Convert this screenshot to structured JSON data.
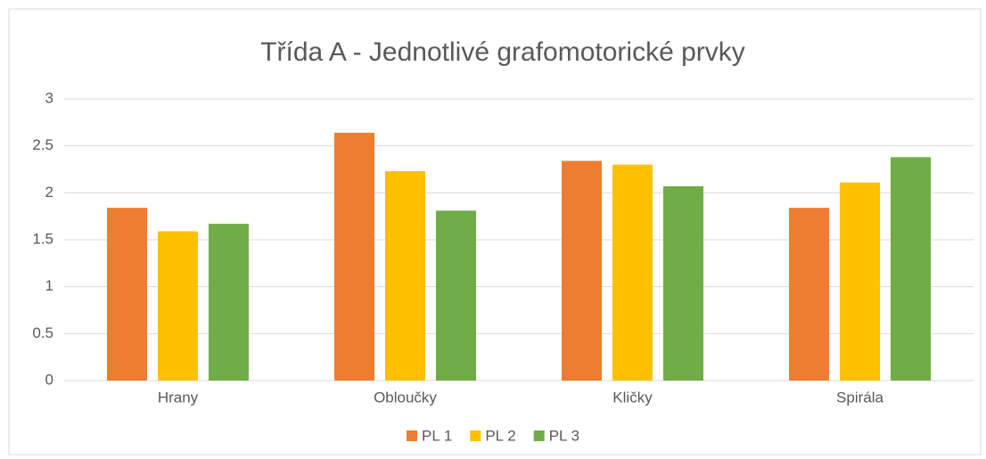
{
  "chart_data": {
    "type": "bar",
    "title": "Třída A - Jednotlivé grafomotorické prvky",
    "categories": [
      "Hrany",
      "Oblоučky",
      "Kličky",
      "Spirála"
    ],
    "series": [
      {
        "name": "PL 1",
        "color": "#ed7d31",
        "values": [
          1.84,
          2.64,
          2.34,
          1.84
        ]
      },
      {
        "name": "PL 2",
        "color": "#ffc000",
        "values": [
          1.59,
          2.23,
          2.3,
          2.11
        ]
      },
      {
        "name": "PL 3",
        "color": "#70ad47",
        "values": [
          1.67,
          1.81,
          2.07,
          2.38
        ]
      }
    ],
    "ylim": [
      0,
      3
    ],
    "yticks": [
      0,
      0.5,
      1,
      1.5,
      2,
      2.5,
      3
    ],
    "grid": true,
    "legend": "bottom"
  }
}
